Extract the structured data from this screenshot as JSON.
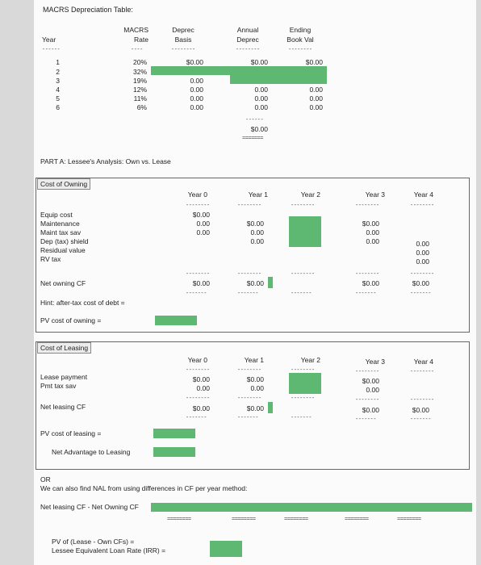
{
  "title": "MACRS Depreciation Table:",
  "macrs": {
    "headers": {
      "year": "Year",
      "rate_1": "MACRS",
      "rate_2": "Rate",
      "basis_1": "Deprec",
      "basis_2": "Basis",
      "annual_1": "Annual",
      "annual_2": "Deprec",
      "ending_1": "Ending",
      "ending_2": "Book Val"
    },
    "years": [
      "1",
      "2",
      "3",
      "4",
      "5",
      "6"
    ],
    "rates": [
      "20%",
      "32%",
      "19%",
      "12%",
      "11%",
      "6%"
    ],
    "basis": [
      "$0.00",
      "",
      "0.00",
      "0.00",
      "0.00",
      "0.00"
    ],
    "annual": [
      "$0.00",
      "",
      "",
      "0.00",
      "0.00",
      "0.00"
    ],
    "ending": [
      "$0.00",
      "",
      "",
      "0.00",
      "0.00",
      "0.00"
    ],
    "total": "$0.00"
  },
  "part_a": "PART A: Lessee's Analysis: Own vs. Lease",
  "owning": {
    "title": "Cost of Owning",
    "cols": [
      "Year 0",
      "Year 1",
      "Year 2",
      "Year 3",
      "Year 4"
    ],
    "rows": [
      "Equip cost",
      "Maintenance",
      "Maint tax sav",
      "Dep (tax) shield",
      "Residual value",
      "RV tax"
    ],
    "y0": [
      "$0.00",
      "0.00",
      "0.00"
    ],
    "y1": [
      "$0.00",
      "0.00",
      "0.00"
    ],
    "y3": [
      "$0.00",
      "0.00",
      "0.00"
    ],
    "y4": [
      "0.00",
      "0.00",
      "0.00"
    ],
    "net_label": "Net owning CF",
    "net": [
      "$0.00",
      "$0.00",
      "",
      "$0.00",
      "$0.00"
    ],
    "hint": "Hint: after-tax cost of debt =",
    "pv": "PV cost of owning ="
  },
  "leasing": {
    "title": "Cost of Leasing",
    "cols": [
      "Year 0",
      "Year 1",
      "Year 2",
      "Year 3",
      "Year 4"
    ],
    "rows": [
      "Lease payment",
      "Pmt tax sav"
    ],
    "y0": [
      "$0.00",
      "0.00"
    ],
    "y1": [
      "$0.00",
      "0.00"
    ],
    "y3": [
      "$0.00",
      "0.00"
    ],
    "net_label": "Net leasing CF",
    "net": [
      "$0.00",
      "$0.00",
      "",
      "$0.00",
      "$0.00"
    ],
    "pv": "PV cost of leasing =",
    "nal": "Net Advantage to Leasing"
  },
  "or_section": {
    "or": "OR",
    "text": "We can also find NAL from using differences in CF per year method:",
    "diff_label": "Net leasing CF - Net Owning CF",
    "pv_label": "PV of (Lease - Own CFs) =",
    "irr_label": "Lessee Equivalent Loan Rate (IRR) ="
  },
  "colors": {
    "green": "#5fb871"
  }
}
